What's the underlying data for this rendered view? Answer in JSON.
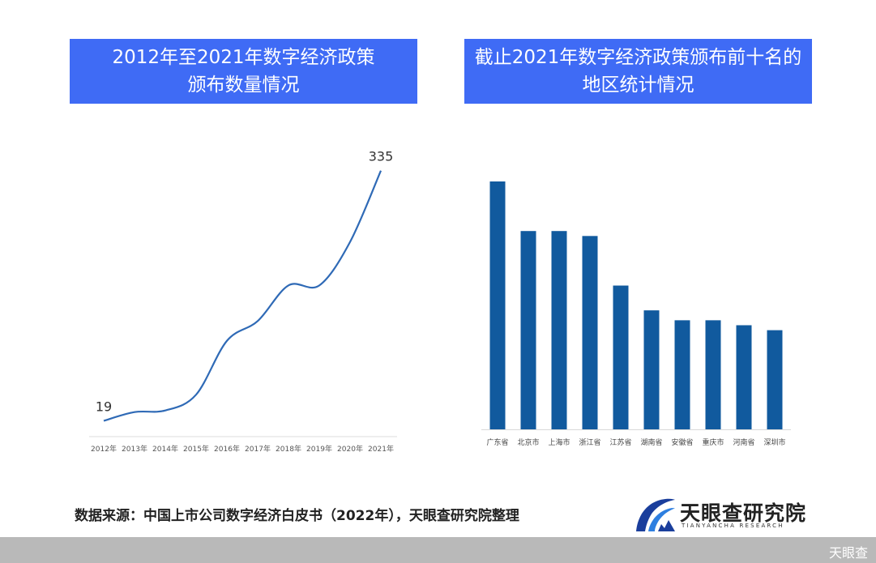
{
  "titles": {
    "left_line1": "2012年至2021年数字经济政策",
    "left_line2": "颁布数量情况",
    "right_line1": "截止2021年数字经济政策颁布前十名的",
    "right_line2": "地区统计情况"
  },
  "chart_data": [
    {
      "type": "line",
      "title": "2012年至2021年数字经济政策颁布数量情况",
      "x": [
        "2012年",
        "2013年",
        "2014年",
        "2015年",
        "2016年",
        "2017年",
        "2018年",
        "2019年",
        "2020年",
        "2021年"
      ],
      "values": [
        19,
        30,
        32,
        52,
        120,
        145,
        190,
        190,
        245,
        335
      ],
      "data_labels": {
        "first": "19",
        "last": "335"
      },
      "ylim": [
        0,
        350
      ],
      "grid": false,
      "color": "#2f6ab6"
    },
    {
      "type": "bar",
      "title": "截止2021年数字经济政策颁布前十名的地区统计情况",
      "categories": [
        "广东省",
        "北京市",
        "上海市",
        "浙江省",
        "江苏省",
        "湖南省",
        "安徽省",
        "重庆市",
        "河南省",
        "深圳市"
      ],
      "values": [
        100,
        80,
        80,
        78,
        58,
        48,
        44,
        44,
        42,
        40
      ],
      "ylim": [
        0,
        100
      ],
      "grid": false,
      "color": "#115a9e"
    }
  ],
  "source_text": "数据来源：中国上市公司数字经济白皮书（2022年），天眼查研究院整理",
  "logo": {
    "name": "天眼查研究院",
    "sub": "TIANYANCHA RESEARCH"
  },
  "footer": {
    "text": "天眼查"
  }
}
